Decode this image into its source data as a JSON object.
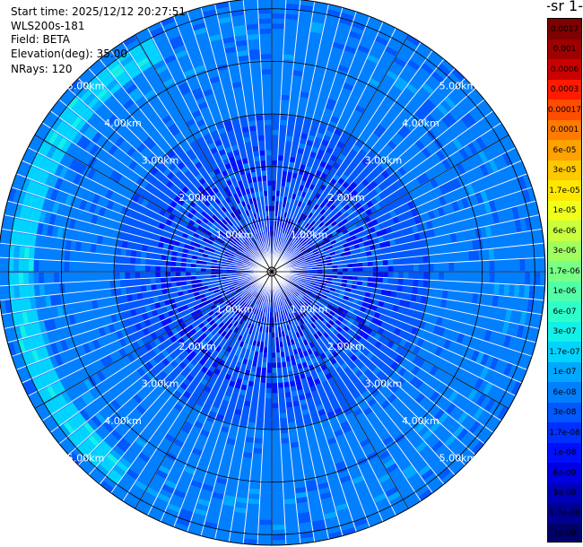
{
  "info": {
    "start_time": "Start time: 2025/12/12 20:27:51",
    "instrument": "WLS200s-181",
    "field": "Field: BETA",
    "elevation": "Elevation(deg): 35.00",
    "nrays": "NRays: 120"
  },
  "colorbar": {
    "title_fragment": "-1 sr-",
    "ticks": [
      "0.0017",
      "0.001",
      "0.0006",
      "0.0003",
      "0.00017",
      "0.0001",
      "6e-05",
      "3e-05",
      "1.7e-05",
      "1e-05",
      "6e-06",
      "3e-06",
      "1.7e-06",
      "1e-06",
      "6e-07",
      "3e-07",
      "1.7e-07",
      "1e-07",
      "6e-08",
      "3e-08",
      "1.7e-08",
      "1e-08",
      "6e-09",
      "3e-09",
      "1.7e-09",
      "1e-09"
    ],
    "colors": [
      "#7f0000",
      "#9f0000",
      "#cc0000",
      "#ff1a00",
      "#ff4d00",
      "#ff7a00",
      "#ffa200",
      "#ffc800",
      "#ffe800",
      "#f0ff1a",
      "#c9ff3d",
      "#a0ff5f",
      "#78ff85",
      "#52ffa8",
      "#2effca",
      "#12f0e8",
      "#00d4ff",
      "#00a8ff",
      "#0080ff",
      "#0058ff",
      "#0030ff",
      "#0010ff",
      "#0000e0",
      "#0000b8",
      "#000090",
      "#00006a"
    ]
  },
  "chart_data": {
    "type": "heatmap",
    "plot": "PPI scan",
    "rays": 120,
    "elevation_deg": 35.0,
    "max_range_km": 5.2,
    "range_rings_km": [
      1.0,
      2.0,
      3.0,
      4.0,
      5.0
    ],
    "range_ring_labels": [
      "1.00km",
      "2.00km",
      "3.00km",
      "4.00km",
      "5.00km"
    ],
    "azimuth_lines_deg": [
      0,
      30,
      60,
      90,
      120,
      150,
      180,
      210,
      240,
      270,
      300,
      330
    ],
    "radial_profile": [
      {
        "range_km": 0.5,
        "beta": 2e-08
      },
      {
        "range_km": 1.0,
        "beta": 3e-08
      },
      {
        "range_km": 1.5,
        "beta": 4e-08
      },
      {
        "range_km": 2.0,
        "beta": 5e-08
      },
      {
        "range_km": 3.0,
        "beta": 6e-08
      },
      {
        "range_km": 4.0,
        "beta": 6e-08
      },
      {
        "range_km": 4.6,
        "beta": 8e-08
      },
      {
        "range_km": 5.0,
        "beta": 6e-08
      }
    ],
    "enhanced_sector": {
      "azimuth_from_deg": 215,
      "azimuth_to_deg": 330,
      "range_km": [
        4.5,
        5.0
      ],
      "beta": 2e-07
    }
  }
}
